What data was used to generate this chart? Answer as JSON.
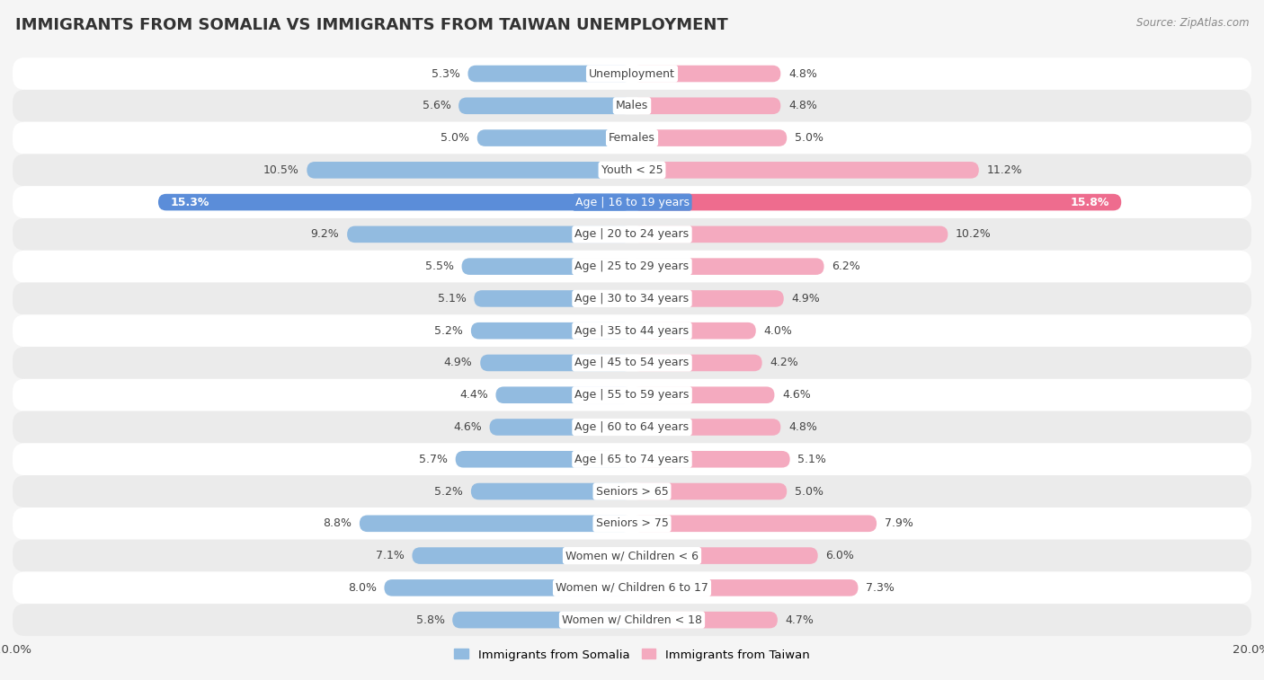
{
  "title": "IMMIGRANTS FROM SOMALIA VS IMMIGRANTS FROM TAIWAN UNEMPLOYMENT",
  "source": "Source: ZipAtlas.com",
  "categories": [
    "Unemployment",
    "Males",
    "Females",
    "Youth < 25",
    "Age | 16 to 19 years",
    "Age | 20 to 24 years",
    "Age | 25 to 29 years",
    "Age | 30 to 34 years",
    "Age | 35 to 44 years",
    "Age | 45 to 54 years",
    "Age | 55 to 59 years",
    "Age | 60 to 64 years",
    "Age | 65 to 74 years",
    "Seniors > 65",
    "Seniors > 75",
    "Women w/ Children < 6",
    "Women w/ Children 6 to 17",
    "Women w/ Children < 18"
  ],
  "somalia_values": [
    5.3,
    5.6,
    5.0,
    10.5,
    15.3,
    9.2,
    5.5,
    5.1,
    5.2,
    4.9,
    4.4,
    4.6,
    5.7,
    5.2,
    8.8,
    7.1,
    8.0,
    5.8
  ],
  "taiwan_values": [
    4.8,
    4.8,
    5.0,
    11.2,
    15.8,
    10.2,
    6.2,
    4.9,
    4.0,
    4.2,
    4.6,
    4.8,
    5.1,
    5.0,
    7.9,
    6.0,
    7.3,
    4.7
  ],
  "somalia_color": "#92BBE0",
  "taiwan_color": "#F4AABF",
  "highlight_somalia_color": "#5B8DD9",
  "highlight_taiwan_color": "#EE6C8E",
  "highlight_indices": [
    4
  ],
  "xlim": 20.0,
  "bar_height": 0.52,
  "background_color": "#f5f5f5",
  "row_colors": [
    "#ffffff",
    "#ebebeb"
  ],
  "label_fontsize": 9.0,
  "value_fontsize": 9.0,
  "title_fontsize": 13,
  "legend_fontsize": 9.5
}
